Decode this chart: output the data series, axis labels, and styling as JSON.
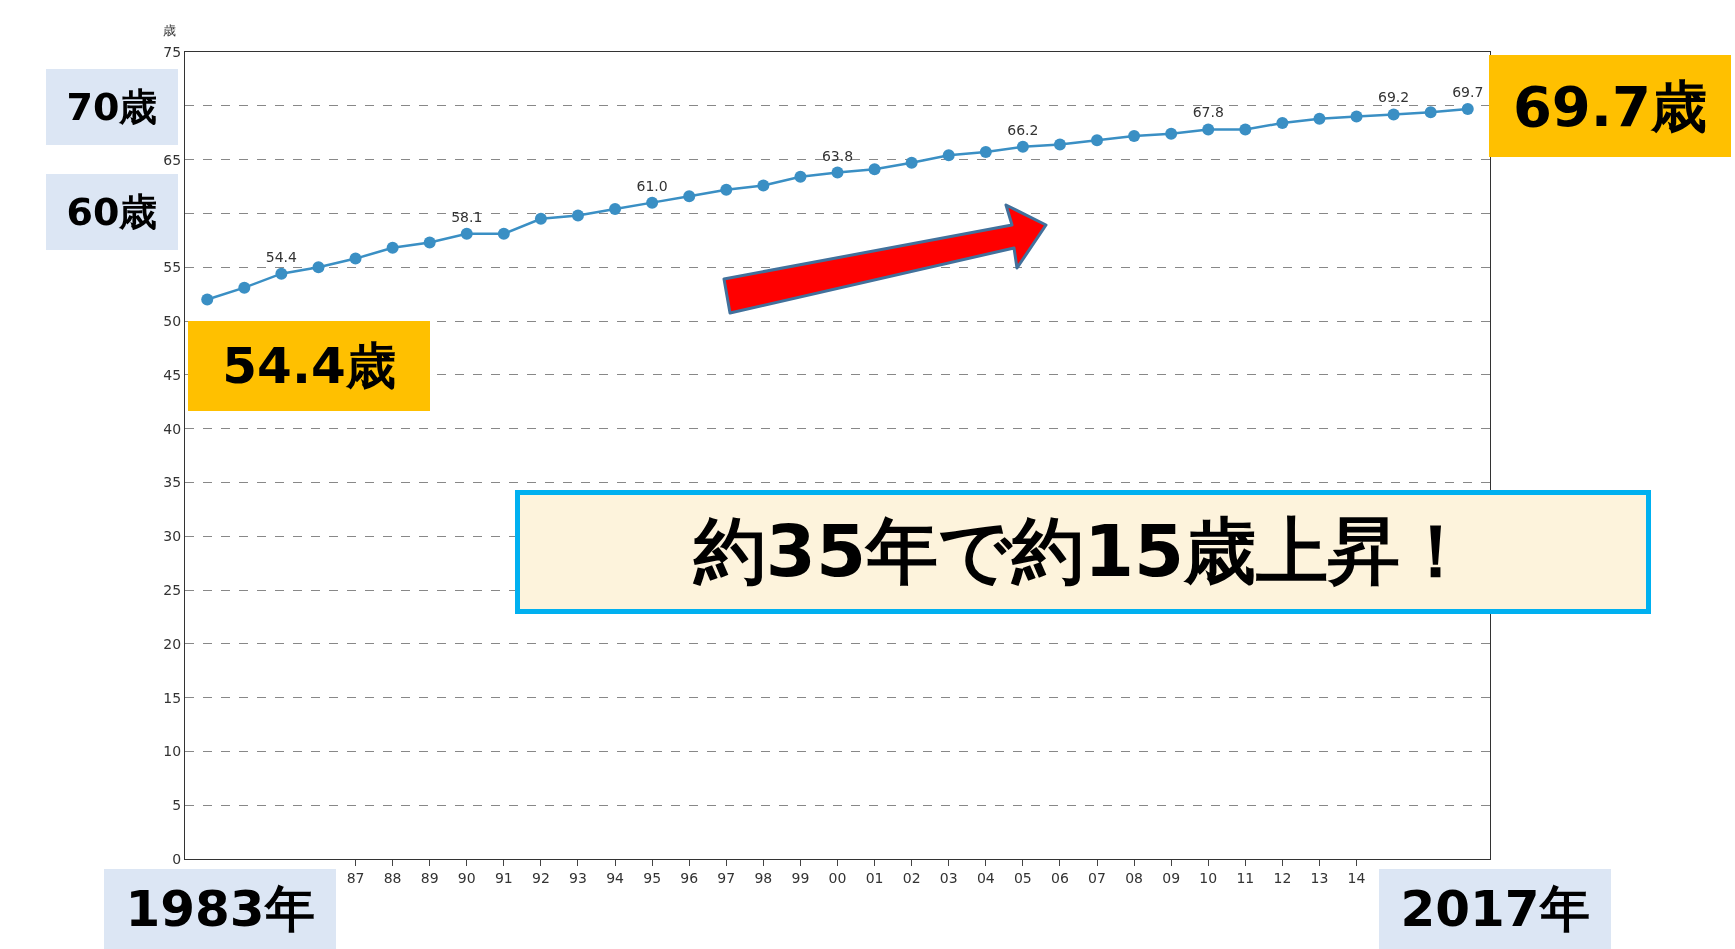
{
  "chart_data": {
    "type": "line",
    "ylabel": "歳",
    "categories": [
      null,
      null,
      null,
      null,
      "87",
      "88",
      "89",
      "90",
      "91",
      "92",
      "93",
      "94",
      "95",
      "96",
      "97",
      "98",
      "99",
      "00",
      "01",
      "02",
      "03",
      "04",
      "05",
      "06",
      "07",
      "08",
      "09",
      "10",
      "11",
      "12",
      "13",
      "14",
      null,
      null,
      null
    ],
    "series": [
      {
        "color": "#3a8fc4",
        "values": [
          52.0,
          53.1,
          54.4,
          55.0,
          55.8,
          56.8,
          57.3,
          58.1,
          58.1,
          59.5,
          59.8,
          60.4,
          61.0,
          61.6,
          62.2,
          62.6,
          63.4,
          63.8,
          64.1,
          64.7,
          65.4,
          65.7,
          66.2,
          66.4,
          66.8,
          67.2,
          67.4,
          67.8,
          67.8,
          68.4,
          68.8,
          69.0,
          69.2,
          69.4,
          69.7
        ],
        "value_labels": [
          null,
          null,
          "54.4",
          null,
          null,
          null,
          null,
          "58.1",
          null,
          null,
          null,
          null,
          "61.0",
          null,
          null,
          null,
          null,
          "63.8",
          null,
          null,
          null,
          null,
          "66.2",
          null,
          null,
          null,
          null,
          "67.8",
          null,
          null,
          null,
          null,
          "69.2",
          null,
          "69.7"
        ]
      }
    ],
    "ylim": [
      0,
      75
    ],
    "yticks": [
      0,
      5,
      10,
      15,
      20,
      25,
      30,
      35,
      40,
      45,
      50,
      55,
      {
        "value": 60,
        "label": null
      },
      65,
      {
        "value": 70,
        "label": null
      },
      75
    ],
    "grid": "y",
    "marker": "circle",
    "line_style": "solid",
    "annotations": [
      "70歳",
      "60歳",
      "54.4歳",
      "69.7歳",
      "1983年",
      "2017年",
      "約35年で約15歳上昇！"
    ]
  }
}
